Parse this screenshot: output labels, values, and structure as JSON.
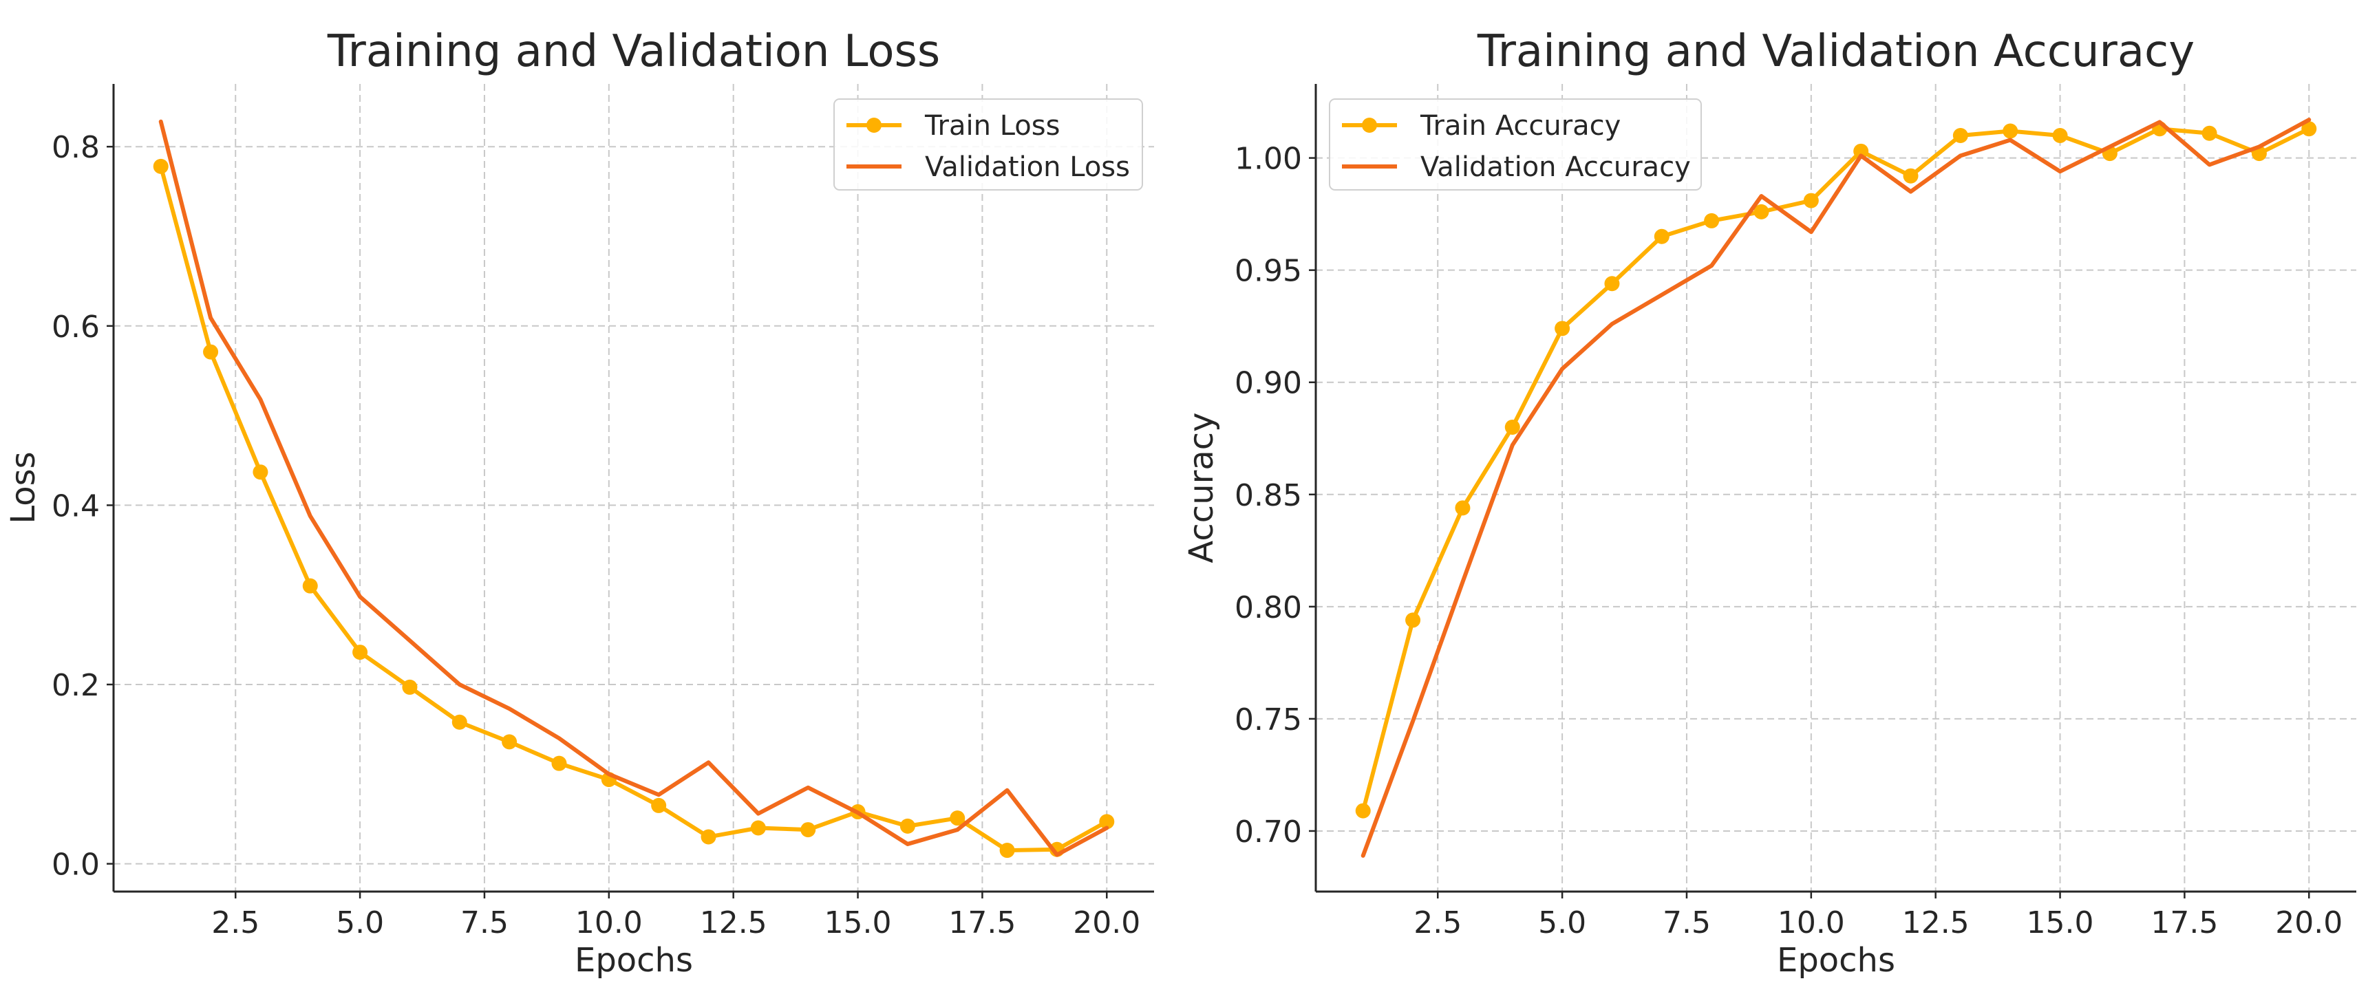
{
  "chart_data": [
    {
      "type": "line",
      "title": "Training and Validation Loss",
      "xlabel": "Epochs",
      "ylabel": "Loss",
      "xlim": [
        0.05,
        20.95
      ],
      "ylim": [
        -0.031,
        0.87
      ],
      "xticks": [
        2.5,
        5.0,
        7.5,
        10.0,
        12.5,
        15.0,
        17.5,
        20.0
      ],
      "xtick_labels": [
        "2.5",
        "5.0",
        "7.5",
        "10.0",
        "12.5",
        "15.0",
        "17.5",
        "20.0"
      ],
      "yticks": [
        0.0,
        0.2,
        0.4,
        0.6,
        0.8
      ],
      "ytick_labels": [
        "0.0",
        "0.2",
        "0.4",
        "0.6",
        "0.8"
      ],
      "grid": true,
      "legend_position": "top-right",
      "x": [
        1,
        2,
        3,
        4,
        5,
        6,
        7,
        8,
        9,
        10,
        11,
        12,
        13,
        14,
        15,
        16,
        17,
        18,
        19,
        20
      ],
      "series": [
        {
          "name": "Train Loss",
          "color": "#FFB000",
          "marker": "circle",
          "values": [
            0.778,
            0.571,
            0.437,
            0.31,
            0.236,
            0.197,
            0.158,
            0.136,
            0.112,
            0.094,
            0.065,
            0.03,
            0.04,
            0.038,
            0.058,
            0.042,
            0.051,
            0.015,
            0.016,
            0.047
          ]
        },
        {
          "name": "Validation Loss",
          "color": "#F26A1B",
          "marker": "none",
          "values": [
            0.828,
            0.609,
            0.518,
            0.388,
            0.298,
            0.249,
            0.2,
            0.173,
            0.14,
            0.1,
            0.077,
            0.113,
            0.056,
            0.085,
            0.057,
            0.022,
            0.038,
            0.082,
            0.01,
            0.04
          ]
        }
      ]
    },
    {
      "type": "line",
      "title": "Training and Validation Accuracy",
      "xlabel": "Epochs",
      "ylabel": "Accuracy",
      "xlim": [
        0.05,
        20.95
      ],
      "ylim": [
        0.673,
        1.033
      ],
      "xticks": [
        2.5,
        5.0,
        7.5,
        10.0,
        12.5,
        15.0,
        17.5,
        20.0
      ],
      "xtick_labels": [
        "2.5",
        "5.0",
        "7.5",
        "10.0",
        "12.5",
        "15.0",
        "17.5",
        "20.0"
      ],
      "yticks": [
        0.7,
        0.75,
        0.8,
        0.85,
        0.9,
        0.95,
        1.0
      ],
      "ytick_labels": [
        "0.70",
        "0.75",
        "0.80",
        "0.85",
        "0.90",
        "0.95",
        "1.00"
      ],
      "grid": true,
      "legend_position": "top-left",
      "x": [
        1,
        2,
        3,
        4,
        5,
        6,
        7,
        8,
        9,
        10,
        11,
        12,
        13,
        14,
        15,
        16,
        17,
        18,
        19,
        20
      ],
      "series": [
        {
          "name": "Train Accuracy",
          "color": "#FFB000",
          "marker": "circle",
          "values": [
            0.709,
            0.794,
            0.844,
            0.88,
            0.924,
            0.944,
            0.965,
            0.972,
            0.976,
            0.981,
            1.003,
            0.992,
            1.01,
            1.012,
            1.01,
            1.002,
            1.013,
            1.011,
            1.002,
            1.013
          ]
        },
        {
          "name": "Validation Accuracy",
          "color": "#F26A1B",
          "marker": "none",
          "values": [
            0.689,
            0.749,
            0.811,
            0.872,
            0.906,
            0.926,
            0.939,
            0.952,
            0.983,
            0.967,
            1.001,
            0.985,
            1.001,
            1.008,
            0.994,
            1.005,
            1.016,
            0.997,
            1.005,
            1.017
          ]
        }
      ]
    }
  ]
}
